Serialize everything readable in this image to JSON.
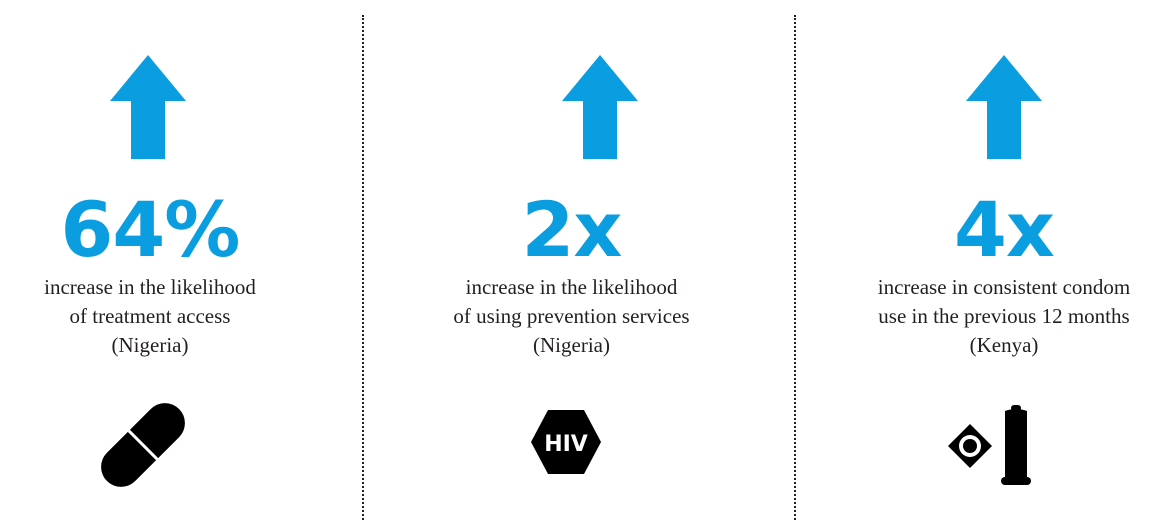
{
  "accent_color": "#0a9de0",
  "text_color": "#231f20",
  "columns": [
    {
      "stat": "64%",
      "lines": [
        "increase in the likelihood",
        "of treatment access",
        "(Nigeria)"
      ],
      "icon": "pill-icon"
    },
    {
      "stat": "2x",
      "lines": [
        "increase in the likelihood",
        "of using prevention services",
        "(Nigeria)"
      ],
      "icon": "hiv-hexagon-icon",
      "icon_text": "HIV"
    },
    {
      "stat": "4x",
      "lines": [
        "increase in consistent condom",
        "use in the previous 12 months",
        "(Kenya)"
      ],
      "icon": "condom-icon"
    }
  ]
}
